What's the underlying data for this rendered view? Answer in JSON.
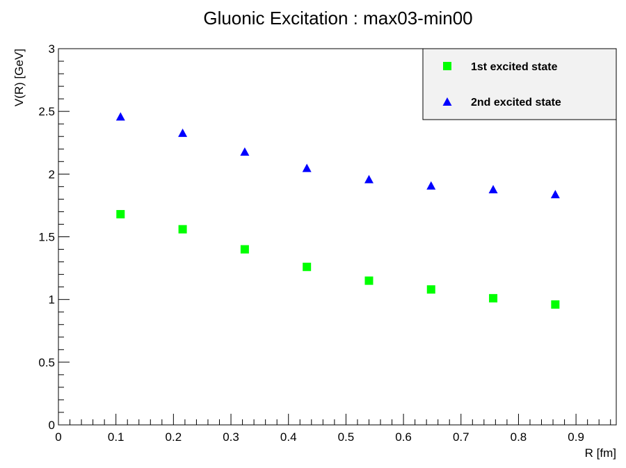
{
  "chart_data": {
    "type": "scatter",
    "title": "Gluonic Excitation : max03-min00",
    "xlabel": "R [fm]",
    "ylabel": "V(R) [GeV]",
    "xlim": [
      0,
      0.97
    ],
    "ylim": [
      0,
      3
    ],
    "xticks": [
      "0",
      "0.1",
      "0.2",
      "0.3",
      "0.4",
      "0.5",
      "0.6",
      "0.7",
      "0.8",
      "0.9"
    ],
    "yticks": [
      "0",
      "0.5",
      "1",
      "1.5",
      "2",
      "2.5",
      "3"
    ],
    "grid": false,
    "legend_position": "top-right",
    "series": [
      {
        "name": "1st excited state",
        "marker": "square",
        "color": "#00ff00",
        "x": [
          0.108,
          0.216,
          0.324,
          0.432,
          0.54,
          0.648,
          0.756,
          0.864
        ],
        "y": [
          1.68,
          1.56,
          1.4,
          1.26,
          1.15,
          1.08,
          1.01,
          0.96
        ]
      },
      {
        "name": "2nd excited state",
        "marker": "triangle",
        "color": "#0000ff",
        "x": [
          0.108,
          0.216,
          0.324,
          0.432,
          0.54,
          0.648,
          0.756,
          0.864
        ],
        "y": [
          2.46,
          2.33,
          2.18,
          2.05,
          1.96,
          1.91,
          1.88,
          1.84
        ]
      }
    ]
  }
}
